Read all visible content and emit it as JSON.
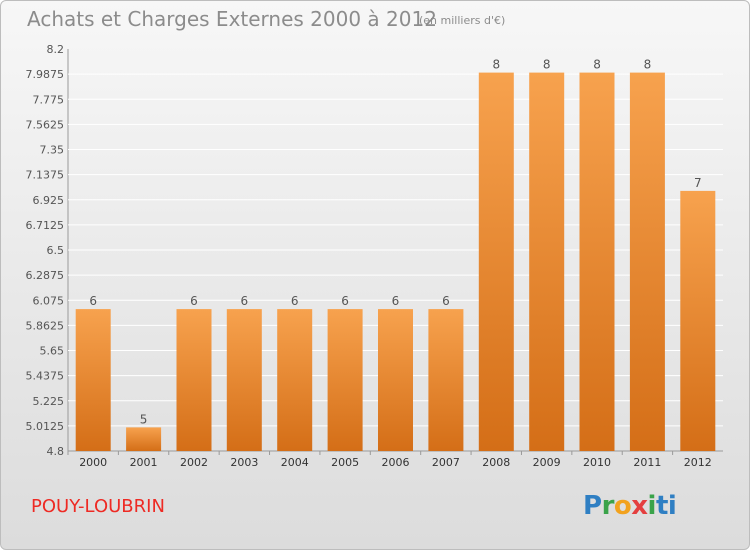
{
  "header": {
    "title": "Achats et Charges Externes 2000 à 2012",
    "unit": "(en milliers d'€)"
  },
  "footer": {
    "town": "POUY-LOUBRIN",
    "logo_letters": [
      "P",
      "r",
      "o",
      "x",
      "i",
      "ti"
    ]
  },
  "colors": {
    "bar_top": "#f7a24e",
    "bar_bottom": "#d46e17",
    "grid": "#ffffff",
    "text": "#555555"
  },
  "chart_data": {
    "type": "bar",
    "categories": [
      "2000",
      "2001",
      "2002",
      "2003",
      "2004",
      "2005",
      "2006",
      "2007",
      "2008",
      "2009",
      "2010",
      "2011",
      "2012"
    ],
    "values": [
      6,
      5,
      6,
      6,
      6,
      6,
      6,
      6,
      8,
      8,
      8,
      8,
      7
    ],
    "data_labels": [
      "6",
      "5",
      "6",
      "6",
      "6",
      "6",
      "6",
      "6",
      "8",
      "8",
      "8",
      "8",
      "7"
    ],
    "yticks": [
      "8.2",
      "7.9875",
      "7.775",
      "7.5625",
      "7.35",
      "7.1375",
      "6.925",
      "6.7125",
      "6.5",
      "6.2875",
      "6.075",
      "5.8625",
      "5.65",
      "5.4375",
      "5.225",
      "5.0125",
      "4.8"
    ],
    "ylim": [
      4.8,
      8.2
    ],
    "grid": true
  }
}
